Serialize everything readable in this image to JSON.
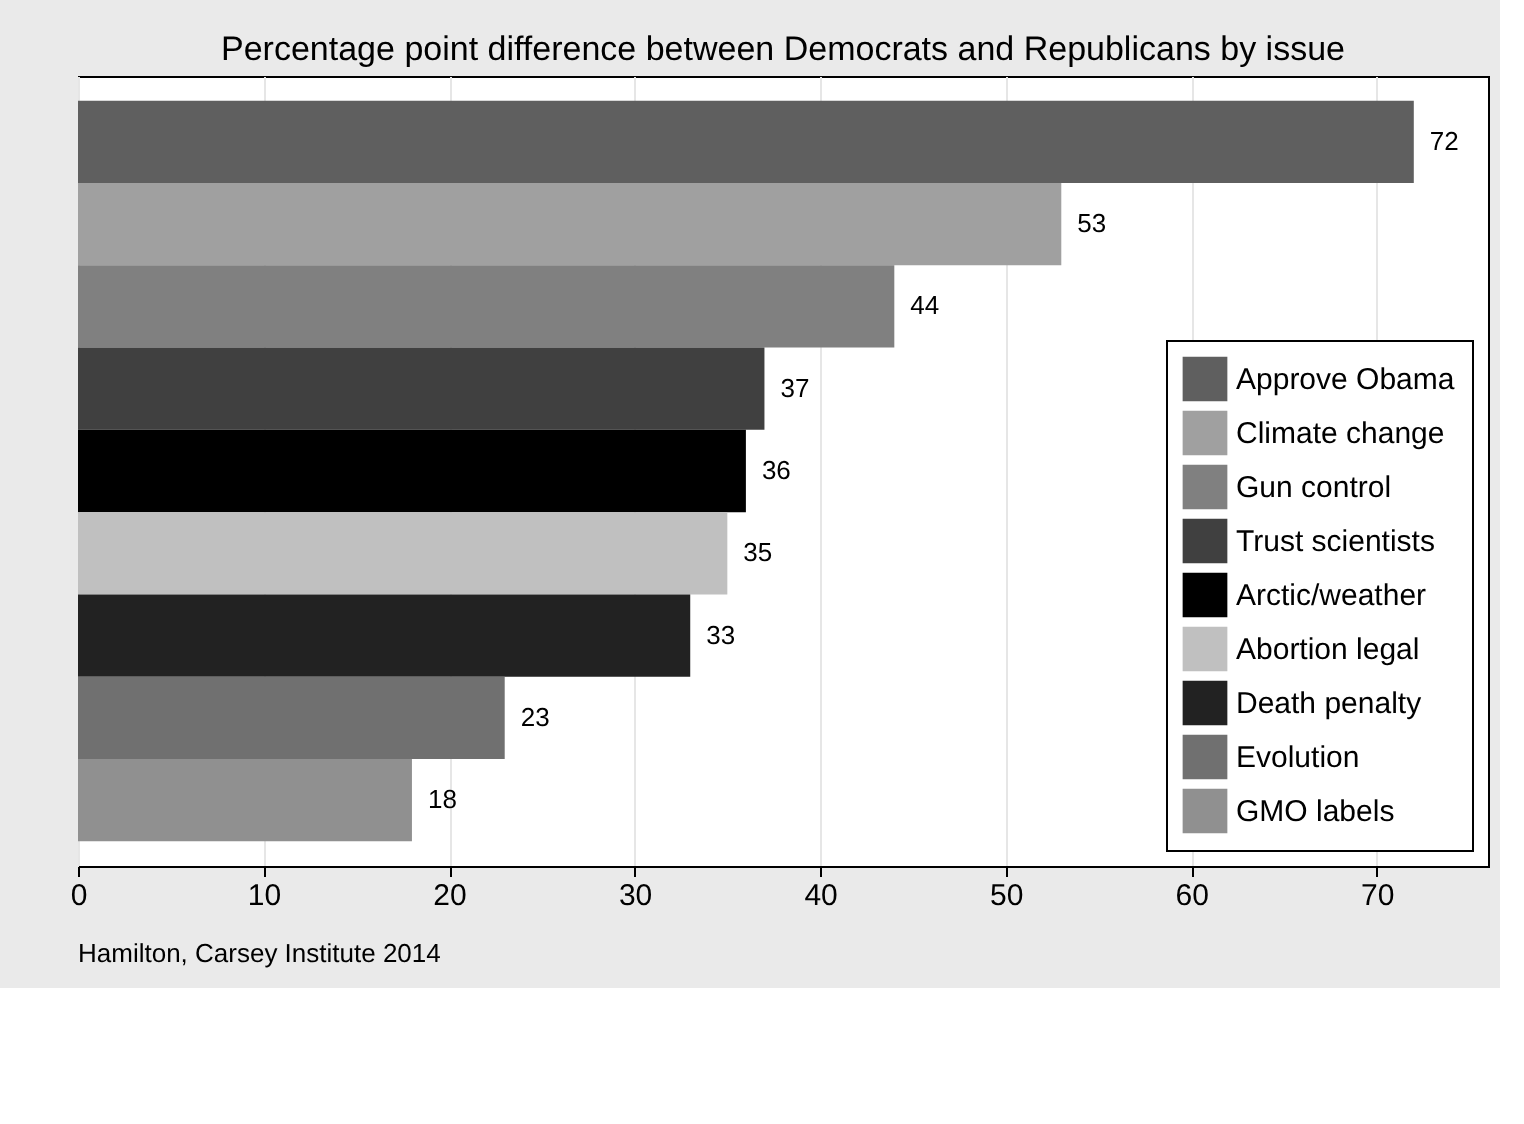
{
  "chart_data": {
    "type": "bar",
    "orientation": "horizontal",
    "title": "Percentage point difference between Democrats and Republicans by issue",
    "categories": [
      null
    ],
    "series": [
      {
        "name": "Approve Obama",
        "color": "#5f5f5f",
        "values": [
          72
        ]
      },
      {
        "name": "Climate change",
        "color": "#a0a0a0",
        "values": [
          53
        ]
      },
      {
        "name": "Gun control",
        "color": "#808080",
        "values": [
          44
        ]
      },
      {
        "name": "Trust scientists",
        "color": "#404040",
        "values": [
          37
        ]
      },
      {
        "name": "Arctic/weather",
        "color": "#000000",
        "values": [
          36
        ]
      },
      {
        "name": "Abortion legal",
        "color": "#c0c0c0",
        "values": [
          35
        ]
      },
      {
        "name": "Death penalty",
        "color": "#222222",
        "values": [
          33
        ]
      },
      {
        "name": "Evolution",
        "color": "#707070",
        "values": [
          23
        ]
      },
      {
        "name": "GMO labels",
        "color": "#909090",
        "values": [
          18
        ]
      }
    ],
    "xlim": [
      0,
      76
    ],
    "xticks": [
      0,
      10,
      20,
      30,
      40,
      50,
      60,
      70
    ],
    "grid": "x",
    "data_labels": true,
    "legend": "bottom right",
    "annotations": [
      "Hamilton, Carsey Institute 2014"
    ]
  }
}
